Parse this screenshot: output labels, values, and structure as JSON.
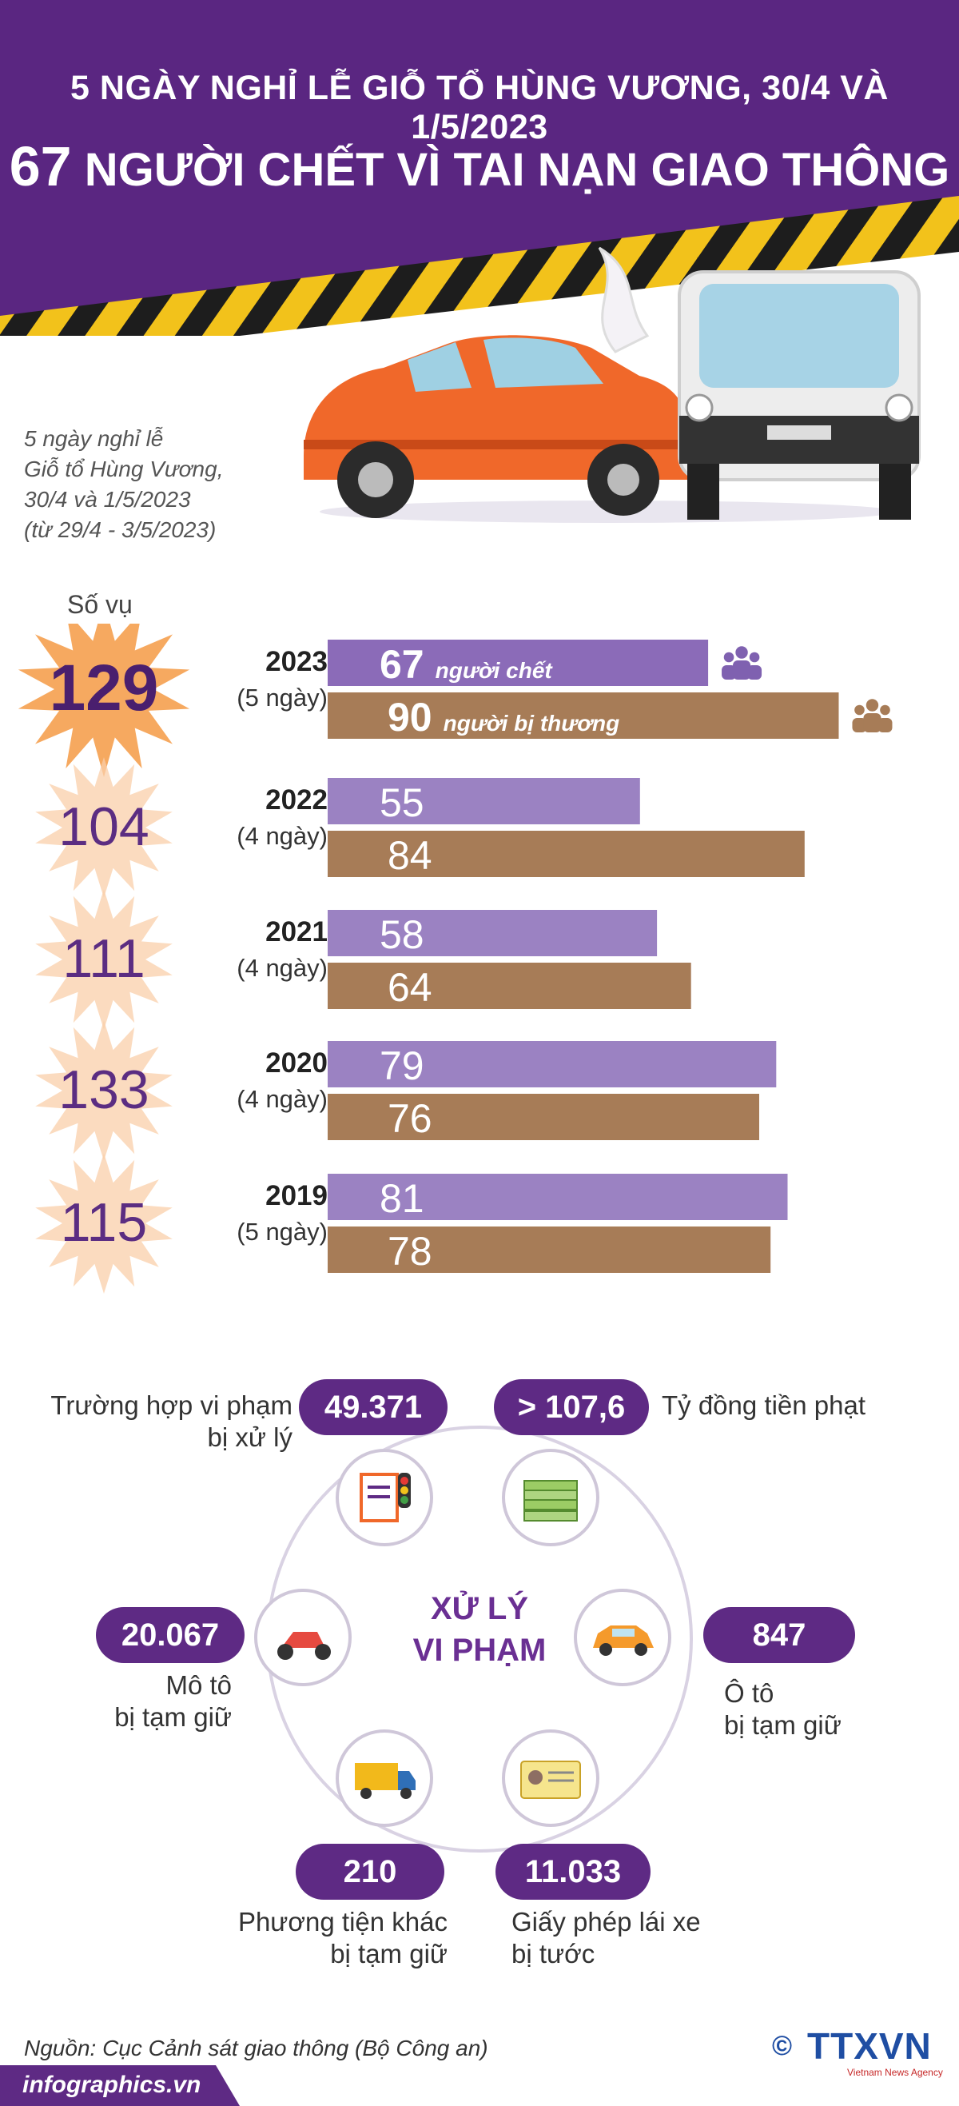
{
  "header": {
    "title_line1": "5 NGÀY NGHỈ LỄ GIỖ TỔ HÙNG VƯƠNG, 30/4 VÀ 1/5/2023",
    "title_line2_number": "67",
    "title_line2_text": "NGƯỜI CHẾT VÌ TAI NẠN GIAO THÔNG"
  },
  "subtitle": {
    "line1": "5 ngày nghỉ lễ",
    "line2": "Giỗ tổ Hùng Vương,",
    "line3": "30/4 và 1/5/2023",
    "line4": "(từ 29/4 - 3/5/2023)"
  },
  "colors": {
    "purple_dark": "#5e2a84",
    "purple_bar": "#9b82c2",
    "brown_bar": "#a77c57",
    "yellow": "#f2c21b",
    "orange_burst": "#f6b37a"
  },
  "chart_data": {
    "type": "bar",
    "orientation": "horizontal",
    "incidents_label": "Số vụ",
    "series_labels": {
      "deaths": "người chết",
      "injured": "người bị thương"
    },
    "xlim": [
      0,
      95
    ],
    "years": [
      {
        "year": "2023",
        "period": "(5 ngày)",
        "incidents": 129,
        "deaths": 67,
        "injured": 90
      },
      {
        "year": "2022",
        "period": "(4 ngày)",
        "incidents": 104,
        "deaths": 55,
        "injured": 84
      },
      {
        "year": "2021",
        "period": "(4 ngày)",
        "incidents": 111,
        "deaths": 58,
        "injured": 64
      },
      {
        "year": "2020",
        "period": "(4 ngày)",
        "incidents": 133,
        "deaths": 79,
        "injured": 76
      },
      {
        "year": "2019",
        "period": "(5 ngày)",
        "incidents": 115,
        "deaths": 81,
        "injured": 78
      }
    ]
  },
  "violations": {
    "center_line1": "XỬ LÝ",
    "center_line2": "VI PHẠM",
    "cases": {
      "value": "49.371",
      "line1": "Trường hợp vi phạm",
      "line2": "bị xử lý"
    },
    "fines": {
      "value": "> 107,6",
      "line1": "Tỷ đồng tiền phạt"
    },
    "motorbikes": {
      "value": "20.067",
      "line1": "Mô tô",
      "line2": "bị tạm giữ"
    },
    "cars": {
      "value": "847",
      "line1": "Ô tô",
      "line2": "bị tạm giữ"
    },
    "other_vehicles": {
      "value": "210",
      "line1": "Phương tiện khác",
      "line2": "bị tạm giữ"
    },
    "licenses": {
      "value": "11.033",
      "line1": "Giấy phép lái xe",
      "line2": "bị tước"
    }
  },
  "footer": {
    "source": "Nguồn: Cục Cảnh sát giao thông (Bộ Công an)",
    "site": "infographics.vn",
    "copyright": "©",
    "agency_logo": "TTXVN",
    "agency_sub": "Vietnam News Agency"
  }
}
